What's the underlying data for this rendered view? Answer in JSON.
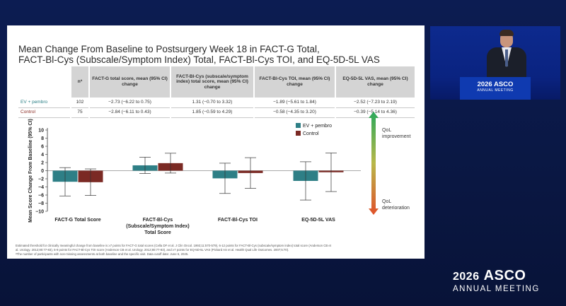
{
  "slide": {
    "title_line1": "Mean Change From Baseline to Postsurgery Week 18 in FACT-G Total,",
    "title_line2": "FACT-Bl-Cys (Subscale/Symptom Index) Total, FACT-Bl-Cys TOI, and EQ-5D-5L VAS",
    "table": {
      "headers": {
        "n": "nª",
        "fact_g": "FACT-G total score, mean (95% CI) change",
        "fact_bl_cys": "FACT-Bl-Cys (subscale/symptom index) total score, mean (95% CI) change",
        "toi": "FACT-Bl-Cys TOI, mean (95% CI) change",
        "eq5d": "EQ-5D-5L VAS, mean (95% CI) change"
      },
      "rows": [
        {
          "arm": "EV + pembro",
          "n": "102",
          "fact_g": "−2.73 (−6.22 to 0.75)",
          "fact_bl_cys": "1.31 (−0.70 to 3.32)",
          "toi": "−1.89 (−5.61 to 1.84)",
          "eq5d": "−2.52 (−7.23 to 2.19)"
        },
        {
          "arm": "Control",
          "n": "75",
          "fact_g": "−2.84 (−6.11 to 0.43)",
          "fact_bl_cys": "1.85 (−0.59 to 4.29)",
          "toi": "−0.58 (−4.35 to 3.20)",
          "eq5d": "−0.39 (−5.14 to 4.36)"
        }
      ]
    },
    "footnote_line1": "Estimated threshold for clinically meaningful change from baseline is ≥7 points for FACT-G total scores (Cella DF et al. J Clin Oncol. 1993;11:570-579), 6-12 points for FACT-Bl-Cys (subscale/symptom index) total score (Anderson CB et",
    "footnote_line2": "al. Urology. 2012;80:77-83), 5-9 points for FACT-Bl-Cys TOI score (Anderson CB et al. Urology. 2012;80:77-83), and ≥7 points for EQ-5D-5L VAS (Pickard AS et al. Health Qual Life Outcomes. 2007;5:70).",
    "footnote_line3": "ªThe number of participants with non-missing assessments at both baseline and the specific visit. Data cutoff date: June 6, 2025."
  },
  "chart_data": {
    "type": "bar",
    "categories": [
      [
        "FACT-G Total Score"
      ],
      [
        "FACT-Bl-Cys",
        "(Subscale/Symptom Index)",
        "Total Score"
      ],
      [
        "FACT-Bl-Cys TOI"
      ],
      [
        "EQ-5D-5L VAS"
      ]
    ],
    "series": [
      {
        "name": "EV + pembro",
        "color": "#2e7f86",
        "values": [
          -2.73,
          1.31,
          -1.89,
          -2.52
        ],
        "ci_low": [
          -6.22,
          -0.7,
          -5.61,
          -7.23
        ],
        "ci_high": [
          0.75,
          3.32,
          1.84,
          2.19
        ]
      },
      {
        "name": "Control",
        "color": "#7b2a24",
        "values": [
          -2.84,
          1.85,
          -0.58,
          -0.39
        ],
        "ci_low": [
          -6.11,
          -0.59,
          -4.35,
          -5.14
        ],
        "ci_high": [
          0.43,
          4.29,
          3.2,
          4.36
        ]
      }
    ],
    "ylabel": "Mean Score Change From Baseline (95% CI)",
    "ylim": [
      -10,
      10
    ],
    "yticks": [
      10,
      8,
      6,
      4,
      2,
      0,
      -2,
      -4,
      -6,
      -8,
      -10
    ],
    "legend_position": "top-right",
    "annotations": {
      "improvement": [
        "QoL",
        "improvement"
      ],
      "deterioration": [
        "QoL",
        "deterioration"
      ],
      "improvement_color": "#2aa85a",
      "deterioration_color": "#e0512a"
    }
  },
  "podium": {
    "line1": "2026 ASCO",
    "line2": "ANNUAL MEETING"
  },
  "logo": {
    "year": "2026",
    "brand": "ASCO",
    "sub": "ANNUAL MEETING"
  }
}
